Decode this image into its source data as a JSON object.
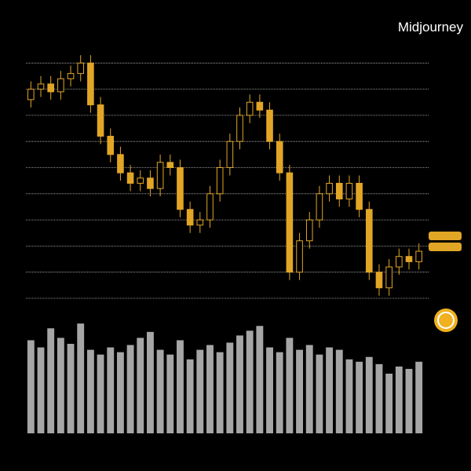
{
  "chart_data": {
    "type": "candlestick",
    "watermark": "Midjourney",
    "candle_color": "#e2a626",
    "volume_color": "#a6a6a6",
    "grid": true,
    "ylim": [
      0,
      100
    ],
    "yticks": [
      0,
      10,
      20,
      30,
      40,
      50,
      60,
      70,
      80,
      90
    ],
    "volume_ylim": [
      0,
      100
    ],
    "open": [
      76,
      80,
      82,
      79,
      84,
      86,
      90,
      74,
      62,
      55,
      48,
      44,
      46,
      42,
      52,
      50,
      34,
      28,
      30,
      40,
      50,
      60,
      70,
      75,
      72,
      60,
      48,
      10,
      22,
      30,
      40,
      44,
      38,
      44,
      34,
      10,
      4,
      12,
      16,
      14
    ],
    "high": [
      83,
      85,
      85,
      87,
      89,
      93,
      93,
      77,
      65,
      58,
      51,
      49,
      49,
      55,
      55,
      53,
      37,
      33,
      43,
      53,
      63,
      73,
      78,
      78,
      75,
      63,
      51,
      25,
      33,
      43,
      47,
      47,
      47,
      47,
      37,
      13,
      15,
      19,
      19,
      21
    ],
    "low": [
      73,
      77,
      76,
      76,
      81,
      83,
      71,
      59,
      52,
      45,
      41,
      41,
      39,
      39,
      47,
      31,
      25,
      25,
      27,
      37,
      47,
      57,
      67,
      69,
      57,
      45,
      7,
      7,
      19,
      27,
      37,
      35,
      35,
      31,
      7,
      1,
      1,
      9,
      11,
      11
    ],
    "close": [
      80,
      82,
      79,
      84,
      86,
      90,
      74,
      62,
      55,
      48,
      44,
      46,
      42,
      52,
      50,
      34,
      28,
      30,
      40,
      50,
      60,
      70,
      75,
      72,
      60,
      48,
      10,
      22,
      30,
      40,
      44,
      38,
      44,
      34,
      10,
      4,
      12,
      16,
      14,
      18
    ],
    "volume": [
      78,
      72,
      88,
      80,
      75,
      92,
      70,
      66,
      72,
      68,
      74,
      80,
      85,
      70,
      66,
      78,
      62,
      70,
      74,
      68,
      76,
      82,
      86,
      90,
      72,
      68,
      80,
      70,
      74,
      66,
      72,
      70,
      62,
      60,
      64,
      58,
      50,
      56,
      54,
      60
    ]
  }
}
